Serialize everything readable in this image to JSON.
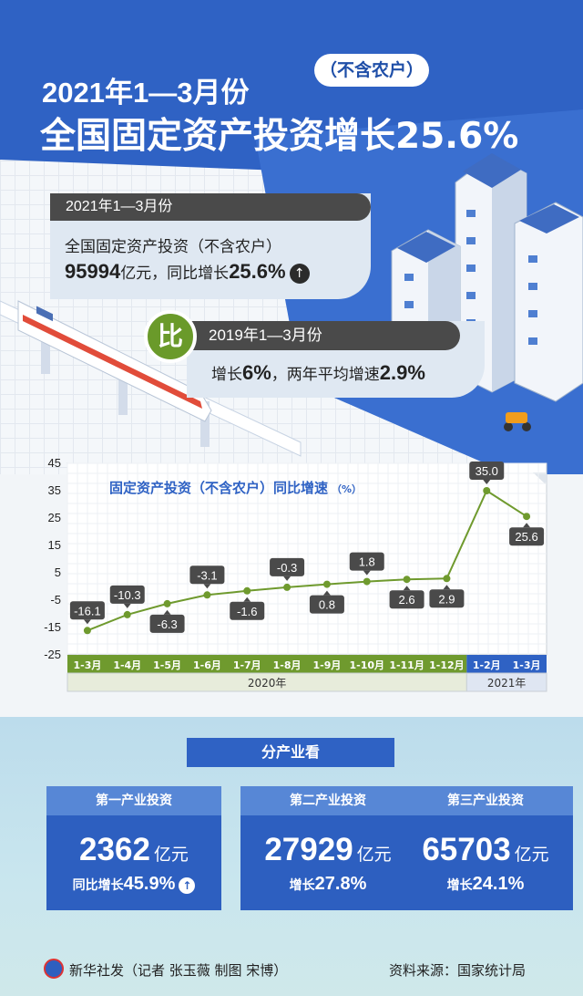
{
  "header": {
    "title_line1": "2021年1—3月份",
    "title_tag": "（不含农户）",
    "title_line2": "全国固定资产投资增长25.6%"
  },
  "summary": {
    "head": "2021年1—3月份",
    "line1": "全国固定资产投资（不含农户）",
    "amount": "95994",
    "amount_unit": "亿元，同比增长",
    "growth": "25.6%",
    "growth_icon": "up-arrow-icon"
  },
  "compare": {
    "badge": "比",
    "head": "2019年1—3月份",
    "prefix": "增长",
    "growth": "6%",
    "middle": "，两年平均增速",
    "avg": "2.9%"
  },
  "chart_data": {
    "type": "line",
    "title": "固定资产投资（不含农户）同比增速",
    "unit": "（%）",
    "categories": [
      "1-3月",
      "1-4月",
      "1-5月",
      "1-6月",
      "1-7月",
      "1-8月",
      "1-9月",
      "1-10月",
      "1-11月",
      "1-12月",
      "1-2月",
      "1-3月"
    ],
    "groups": [
      {
        "label": "2020年",
        "count": 10
      },
      {
        "label": "2021年",
        "count": 2
      }
    ],
    "values": [
      -16.1,
      -10.3,
      -6.3,
      -3.1,
      -1.6,
      -0.3,
      0.8,
      1.8,
      2.6,
      2.9,
      35.0,
      25.6
    ],
    "value_labels": [
      "-16.1",
      "-10.3",
      "-6.3",
      "-3.1",
      "-1.6",
      "-0.3",
      "0.8",
      "1.8",
      "2.6",
      "2.9",
      "35.0",
      "25.6"
    ],
    "label_positions": [
      "above",
      "above",
      "below",
      "above",
      "below",
      "above",
      "below",
      "above",
      "below",
      "below",
      "above",
      "below"
    ],
    "yticks": [
      45,
      35,
      25,
      15,
      5,
      -5,
      -15,
      -25
    ],
    "ylim": [
      -25,
      45
    ],
    "grid": true,
    "colors": {
      "line_2020": "#6f9a2e",
      "line_2021": "#6f9a2e",
      "axis_2020": "#6f9a2e",
      "axis_2021": "#2f62c4",
      "label_box": "#4a4a4a"
    }
  },
  "industry": {
    "title": "分产业看",
    "cards": [
      {
        "head": "第一产业投资",
        "value": "2362",
        "unit": "亿元",
        "growth_label": "同比增长",
        "growth": "45.9%",
        "icon": "up-arrow-icon"
      },
      {
        "head": "第二产业投资",
        "value": "27929",
        "unit": "亿元",
        "growth_label": "增长",
        "growth": "27.8%"
      },
      {
        "head": "第三产业投资",
        "value": "65703",
        "unit": "亿元",
        "growth_label": "增长",
        "growth": "24.1%"
      }
    ]
  },
  "footer": {
    "left": "新华社发（记者 张玉薇  制图 宋博）",
    "right": "资料来源：国家统计局"
  }
}
